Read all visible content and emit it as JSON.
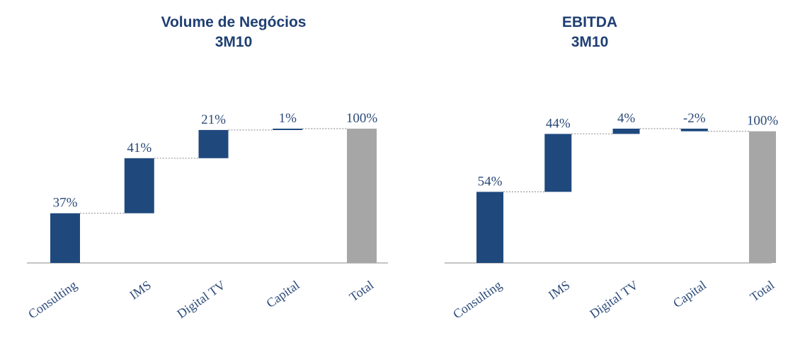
{
  "chart_data": [
    {
      "type": "waterfall",
      "title": "Volume de Negócios",
      "subtitle": "3M10",
      "categories": [
        "Consulting",
        "IMS",
        "Digital TV",
        "Capital",
        "Total"
      ],
      "values": [
        37,
        41,
        21,
        1,
        100
      ],
      "value_labels": [
        "37%",
        "41%",
        "21%",
        "1%",
        "100%"
      ],
      "color": "#1f497d",
      "total_color": "#a6a6a6"
    },
    {
      "type": "waterfall",
      "title": "EBITDA",
      "subtitle": "3M10",
      "categories": [
        "Consulting",
        "IMS",
        "Digital TV",
        "Capital",
        "Total"
      ],
      "values": [
        54,
        44,
        4,
        -2,
        100
      ],
      "value_labels": [
        "54%",
        "44%",
        "4%",
        "-2%",
        "100%"
      ],
      "color": "#1f497d",
      "total_color": "#a6a6a6"
    }
  ]
}
